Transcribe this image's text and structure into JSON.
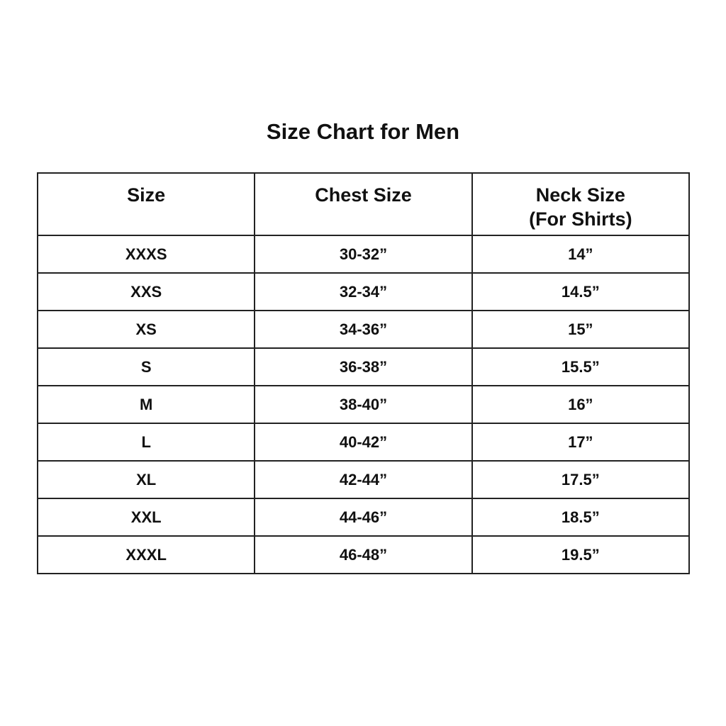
{
  "title": "Size Chart for Men",
  "table": {
    "headers": [
      {
        "line1": "Size",
        "line2": ""
      },
      {
        "line1": "Chest Size",
        "line2": ""
      },
      {
        "line1": "Neck Size",
        "line2": "(For Shirts)"
      }
    ],
    "rows": [
      [
        "XXXS",
        "30-32”",
        "14”"
      ],
      [
        "XXS",
        "32-34”",
        "14.5”"
      ],
      [
        "XS",
        "34-36”",
        "15”"
      ],
      [
        "S",
        "36-38”",
        "15.5”"
      ],
      [
        "M",
        "38-40”",
        "16”"
      ],
      [
        "L",
        "40-42”",
        "17”"
      ],
      [
        "XL",
        "42-44”",
        "17.5”"
      ],
      [
        "XXL",
        "44-46”",
        "18.5”"
      ],
      [
        "XXXL",
        "46-48”",
        "19.5”"
      ]
    ]
  }
}
